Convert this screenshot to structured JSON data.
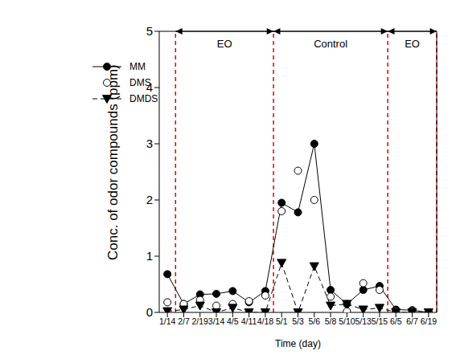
{
  "chart_data": {
    "type": "line",
    "x_label": "Time (day)",
    "y_label": "Conc. of odor compounds (ppm)",
    "categories": [
      "1/14",
      "2/7",
      "2/19",
      "3/14",
      "4/5",
      "4/11",
      "4/18",
      "5/1",
      "5/3",
      "5/6",
      "5/8",
      "5/10",
      "5/13",
      "5/15",
      "6/5",
      "6/7",
      "6/19"
    ],
    "series": [
      {
        "name": "MM",
        "color": "#000000",
        "marker": "circle",
        "line_style": "solid",
        "values": [
          0.68,
          0.15,
          0.32,
          0.33,
          0.38,
          0.18,
          0.38,
          1.95,
          1.78,
          3.0,
          0.4,
          0.15,
          0.4,
          0.47,
          0.05,
          0.04,
          0.0
        ]
      },
      {
        "name": "DMS",
        "color": "#000000",
        "marker": "open_circle",
        "line_style": "none",
        "values": [
          0.18,
          0.15,
          0.22,
          0.12,
          0.15,
          0.2,
          0.3,
          1.8,
          2.52,
          2.0,
          0.28,
          0.02,
          0.52,
          0.4,
          0.02,
          0.02,
          0.0
        ]
      },
      {
        "name": "DMDS",
        "color": "#000000",
        "marker": "triangle_down",
        "line_style": "dashed",
        "values": [
          0.02,
          0.05,
          0.12,
          0.0,
          0.08,
          0.0,
          0.0,
          0.88,
          0.0,
          0.82,
          0.12,
          0.15,
          0.05,
          0.08,
          0.0,
          0.0,
          0.0
        ]
      }
    ],
    "ylim": [
      0,
      5
    ],
    "yticks": [
      0,
      1,
      2,
      3,
      4,
      5
    ],
    "legend": "upper left",
    "annotations": [
      {
        "text": "EO",
        "start": "2/7",
        "end": "4/18"
      },
      {
        "text": "Control",
        "start": "5/1",
        "end": "5/15"
      },
      {
        "text": "EO",
        "start": "6/5",
        "end": "6/19"
      }
    ]
  }
}
